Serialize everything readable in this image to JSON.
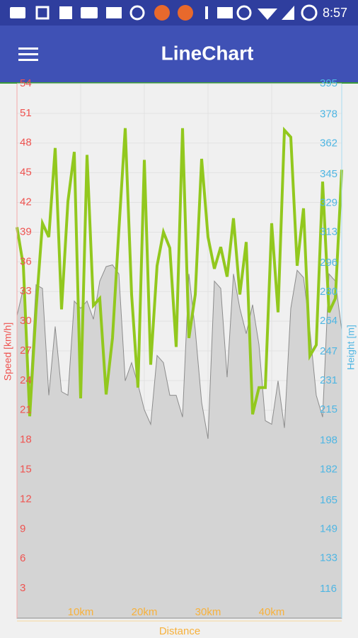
{
  "status_bar": {
    "time": "8:57"
  },
  "app_bar": {
    "title": "LineChart"
  },
  "chart_data": {
    "type": "line",
    "x_label": "Distance",
    "y_label": "Speed [km/h]",
    "y2_label": "Height [m]",
    "x": [
      0,
      1,
      2,
      3,
      4,
      5,
      6,
      7,
      8,
      9,
      10,
      11,
      12,
      13,
      14,
      15,
      16,
      17,
      18,
      19,
      20,
      21,
      22,
      23,
      24,
      25,
      26,
      27,
      28,
      29,
      30,
      31,
      32,
      33,
      34,
      35,
      36,
      37,
      38,
      39,
      40,
      41,
      42,
      43,
      44,
      45,
      46,
      47,
      48,
      49,
      50,
      51
    ],
    "xlim": [
      0,
      51
    ],
    "xticks": [
      {
        "value": 10,
        "label": "10km"
      },
      {
        "value": 20,
        "label": "20km"
      },
      {
        "value": 30,
        "label": "30km"
      },
      {
        "value": 40,
        "label": "40km"
      }
    ],
    "ylim": [
      0,
      54
    ],
    "yticks": [
      3,
      6,
      9,
      12,
      15,
      18,
      21,
      24,
      27,
      30,
      33,
      36,
      39,
      42,
      45,
      48,
      51,
      54
    ],
    "y2lim": [
      100,
      395
    ],
    "y2ticks": [
      116,
      133,
      149,
      165,
      182,
      198,
      215,
      231,
      247,
      264,
      280,
      296,
      313,
      329,
      345,
      362,
      378,
      395
    ],
    "grid": true,
    "series": [
      {
        "name": "Height",
        "color": "#8c8c8c",
        "fill": "#d4d4d4",
        "axis": "y2",
        "values": [
          267,
          282,
          223,
          284,
          282,
          223,
          261,
          225,
          223,
          275,
          271,
          275,
          265,
          286,
          294,
          295,
          290,
          231,
          241,
          229,
          215,
          207,
          245,
          241,
          223,
          223,
          211,
          290,
          259,
          219,
          199,
          286,
          282,
          233,
          290,
          271,
          257,
          273,
          251,
          209,
          207,
          231,
          205,
          271,
          292,
          288,
          259,
          223,
          211,
          290,
          286,
          259
        ]
      },
      {
        "name": "Speed",
        "color": "#92c81e",
        "axis": "y",
        "values": [
          39.5,
          35.6,
          20.4,
          31.2,
          39.9,
          38.5,
          47.5,
          31.2,
          42.1,
          47.1,
          22.2,
          46.8,
          31.6,
          32.3,
          22.6,
          28.3,
          39.2,
          49.5,
          32.7,
          23.3,
          46.3,
          25.6,
          35.6,
          39.0,
          37.4,
          27.4,
          49.5,
          28.3,
          32.7,
          46.4,
          38.5,
          35.3,
          37.5,
          34.5,
          40.4,
          32.7,
          38.0,
          20.6,
          23.3,
          23.3,
          39.9,
          30.9,
          49.3,
          48.6,
          35.6,
          41.4,
          26.5,
          27.6,
          44.1,
          30.9,
          32.3,
          45.3
        ]
      }
    ]
  }
}
